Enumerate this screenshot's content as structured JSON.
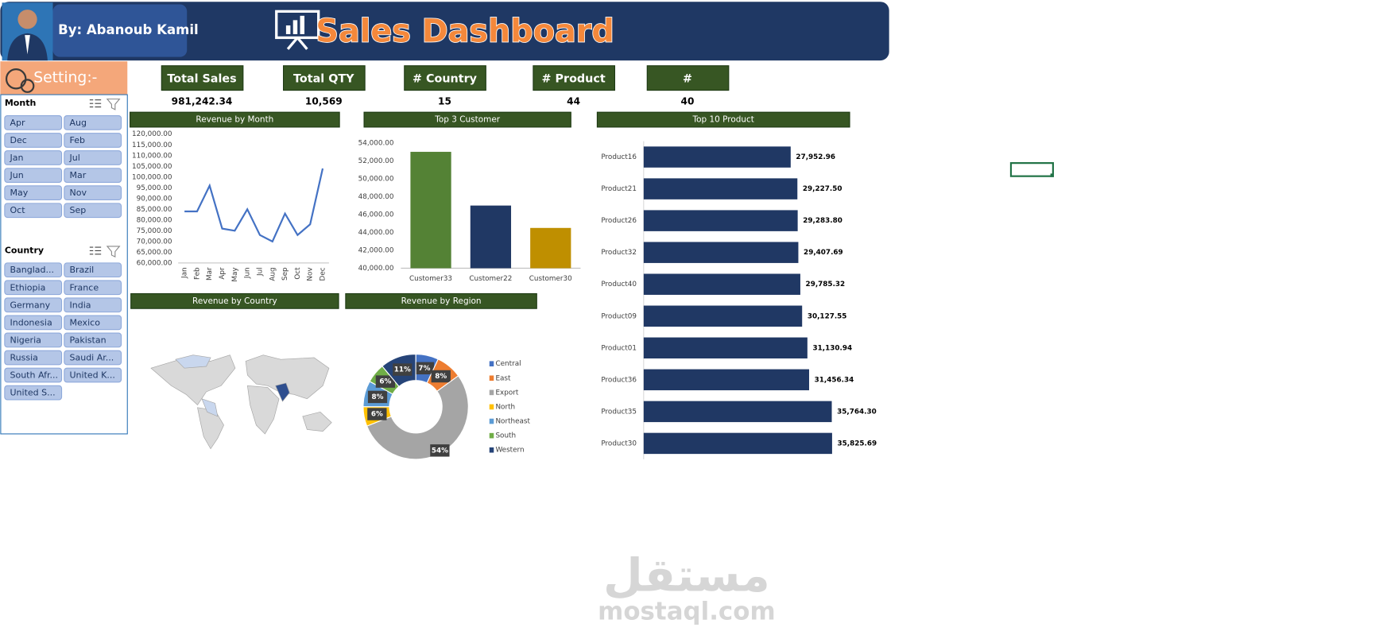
{
  "header": {
    "author": "By: Abanoub Kamil",
    "title": "Sales Dashboard"
  },
  "settings_label": "Setting:-",
  "kpis": [
    {
      "label": "Total Sales",
      "value": "981,242.34"
    },
    {
      "label": "Total QTY",
      "value": "10,569"
    },
    {
      "label": "# Country",
      "value": "15"
    },
    {
      "label": "# Product",
      "value": "44"
    },
    {
      "label": "#",
      "value": "40"
    }
  ],
  "slicers": [
    {
      "title": "Month",
      "items": [
        "Apr",
        "Aug",
        "Dec",
        "Feb",
        "Jan",
        "Jul",
        "Jun",
        "Mar",
        "May",
        "Nov",
        "Oct",
        "Sep"
      ]
    },
    {
      "title": "Country",
      "items": [
        "Banglad...",
        "Brazil",
        "Ethiopia",
        "France",
        "Germany",
        "India",
        "Indonesia",
        "Mexico",
        "Nigeria",
        "Pakistan",
        "Russia",
        "Saudi Ar...",
        "South Afr...",
        "United K...",
        "United S..."
      ]
    }
  ],
  "chart_data": [
    {
      "type": "line",
      "title": "Revenue by Month",
      "categories": [
        "Jan",
        "Feb",
        "Mar",
        "Apr",
        "May",
        "Jun",
        "Jul",
        "Aug",
        "Sep",
        "Oct",
        "Nov",
        "Dec"
      ],
      "values": [
        84000,
        84000,
        96000,
        76000,
        75000,
        85000,
        73000,
        70000,
        83000,
        73000,
        78000,
        104000
      ],
      "color": "#4472c4",
      "ylim": [
        60000,
        120000
      ],
      "yticks": [
        {
          "value": 60000,
          "label": "60,000.00"
        },
        {
          "value": 65000,
          "label": "65,000.00"
        },
        {
          "value": 70000,
          "label": "70,000.00"
        },
        {
          "value": 75000,
          "label": "75,000.00"
        },
        {
          "value": 80000,
          "label": "80,000.00"
        },
        {
          "value": 85000,
          "label": "85,000.00"
        },
        {
          "value": 90000,
          "label": "90,000.00"
        },
        {
          "value": 95000,
          "label": "95,000.00"
        },
        {
          "value": 100000,
          "label": "100,000.00"
        },
        {
          "value": 105000,
          "label": "105,000.00"
        },
        {
          "value": 110000,
          "label": "110,000.00"
        },
        {
          "value": 115000,
          "label": "115,000.00"
        },
        {
          "value": 120000,
          "label": "120,000.00"
        }
      ]
    },
    {
      "type": "bar",
      "title": "Top 3 Customer",
      "categories": [
        "Customer33",
        "Customer22",
        "Customer30"
      ],
      "values": [
        53000,
        47000,
        44500
      ],
      "colors": [
        "#548235",
        "#203864",
        "#bf8f00"
      ],
      "ylim": [
        40000,
        54000
      ],
      "yticks": [
        {
          "value": 40000,
          "label": "40,000.00"
        },
        {
          "value": 42000,
          "label": "42,000.00"
        },
        {
          "value": 44000,
          "label": "44,000.00"
        },
        {
          "value": 46000,
          "label": "46,000.00"
        },
        {
          "value": 48000,
          "label": "48,000.00"
        },
        {
          "value": 50000,
          "label": "50,000.00"
        },
        {
          "value": 52000,
          "label": "52,000.00"
        },
        {
          "value": 54000,
          "label": "54,000.00"
        }
      ]
    },
    {
      "type": "hbar",
      "title": "Top 10 Product",
      "categories": [
        "Product16",
        "Product21",
        "Product26",
        "Product32",
        "Product40",
        "Product09",
        "Product01",
        "Product36",
        "Product35",
        "Product30"
      ],
      "values": [
        27952.96,
        29227.5,
        29283.8,
        29407.69,
        29785.32,
        30127.55,
        31130.94,
        31456.34,
        35764.3,
        35825.69
      ],
      "value_labels": [
        "27,952.96",
        "29,227.50",
        "29,283.80",
        "29,407.69",
        "29,785.32",
        "30,127.55",
        "31,130.94",
        "31,456.34",
        "35,764.30",
        "35,825.69"
      ],
      "color": "#203864",
      "xlim": [
        0,
        40000
      ]
    },
    {
      "type": "map",
      "title": "Revenue by Country"
    },
    {
      "type": "pie",
      "title": "Revenue by Region",
      "categories": [
        "Central",
        "East",
        "Export",
        "North",
        "Northeast",
        "South",
        "Western"
      ],
      "values": [
        7,
        8,
        54,
        6,
        8,
        6,
        11
      ],
      "value_labels": [
        "7%",
        "8%",
        "54%",
        "6%",
        "8%",
        "6%",
        "11%"
      ],
      "colors": [
        "#4472c4",
        "#ed7d31",
        "#a5a5a5",
        "#ffc000",
        "#5b9bd5",
        "#70ad47",
        "#264478"
      ]
    }
  ],
  "watermark": {
    "arabic": "مستقل",
    "latin": "mostaql.com"
  }
}
